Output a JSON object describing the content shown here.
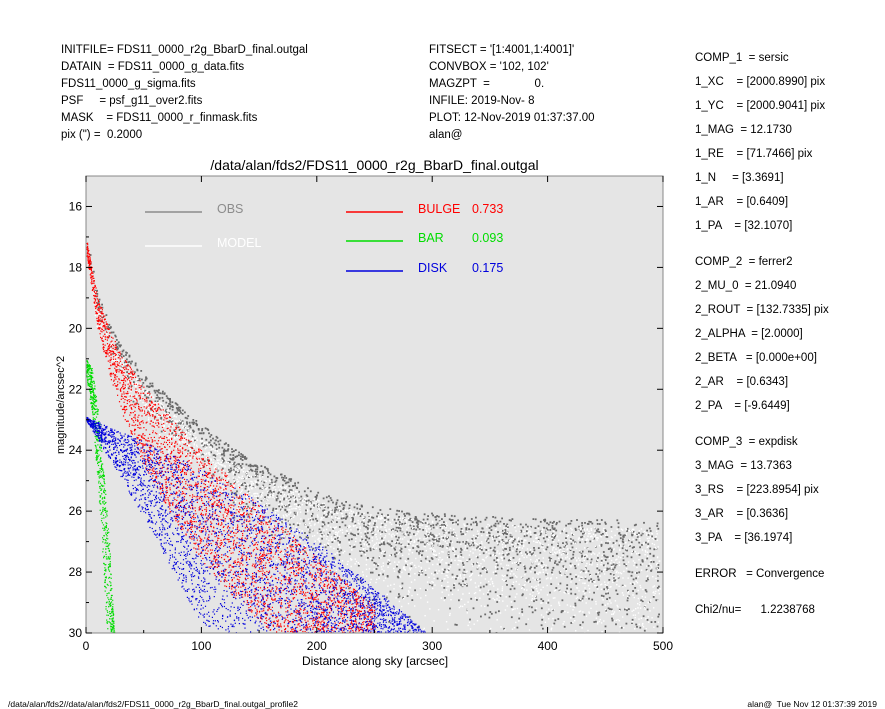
{
  "header_left": [
    "INITFILE= FDS11_0000_r2g_BbarD_final.outgal",
    "DATAIN  = FDS11_0000_g_data.fits",
    "FDS11_0000_g_sigma.fits",
    "PSF     = psf_g11_over2.fits",
    "MASK    = FDS11_0000_r_finmask.fits",
    "pix (\") =  0.2000"
  ],
  "header_mid": [
    "FITSECT = '[1:4001,1:4001]'",
    "CONVBOX = '102, 102'",
    "MAGZPT  =              0.",
    "INFILE: 2019-Nov- 8",
    "PLOT: 12-Nov-2019 01:37:37.00",
    "alan@"
  ],
  "right_panel": [
    "COMP_1  = sersic",
    "1_XC    = [2000.8990] pix",
    "1_YC    = [2000.9041] pix",
    "1_MAG  = 12.1730",
    "1_RE    = [71.7466] pix",
    "1_N     = [3.3691]",
    "1_AR    = [0.6409]",
    "1_PA    = [32.1070]",
    "COMP_2  = ferrer2",
    "2_MU_0  = 21.0940",
    "2_ROUT  = [132.7335] pix",
    "2_ALPHA  = [2.0000]",
    "2_BETA   = [0.000e+00]",
    "2_AR    = [0.6343]",
    "2_PA    = [-9.6449]",
    "COMP_3  = expdisk",
    "3_MAG  = 13.7363",
    "3_RS    = [223.8954] pix",
    "3_AR    = [0.3636]",
    "3_PA    = [36.1974]",
    "ERROR   = Convergence",
    "Chi2/nu=      1.2238768"
  ],
  "footer_left": "/data/alan/fds2//data/alan/fds2/FDS11_0000_r2g_BbarD_final.outgal_profile2",
  "footer_right": "alan@  Tue Nov 12 01:37:39 2019",
  "chart_data": {
    "type": "scatter",
    "title": "/data/alan/fds2/FDS11_0000_r2g_BbarD_final.outgal",
    "xlabel": "Distance along sky [arcsec]",
    "ylabel": "magnitude/arcsec^2",
    "xlim": [
      0,
      500
    ],
    "ylim": [
      30,
      15
    ],
    "y_inverted": true,
    "x_ticks": [
      "0",
      "100",
      "200",
      "300",
      "400",
      "500"
    ],
    "y_ticks": [
      "16",
      "18",
      "20",
      "22",
      "24",
      "26",
      "28",
      "30"
    ],
    "plot_background": "#e5e5e5",
    "legend": [
      {
        "label": "OBS",
        "color": "#8c8c8c"
      },
      {
        "label": "MODEL",
        "color": "#ffffff"
      },
      {
        "label": "BULGE",
        "value": "0.733",
        "color": "#ff0000"
      },
      {
        "label": "BAR",
        "value": "0.093",
        "color": "#00dd00"
      },
      {
        "label": "DISK",
        "value": "0.175",
        "color": "#0000dd"
      }
    ],
    "series": [
      {
        "name": "OBS",
        "color": "#6a6a6a",
        "envelope_x": [
          0,
          10,
          20,
          30,
          50,
          75,
          100,
          125,
          150,
          175,
          200,
          225,
          250,
          300,
          350,
          400,
          450,
          500
        ],
        "envelope_y": [
          17.0,
          19.0,
          20.0,
          20.7,
          21.6,
          22.5,
          23.3,
          24.0,
          24.6,
          25.0,
          25.5,
          25.8,
          26.0,
          26.2,
          26.3,
          26.4,
          26.4,
          26.5
        ]
      },
      {
        "name": "MODEL",
        "color": "#ffffff",
        "envelope_x": [
          0,
          10,
          20,
          30,
          50,
          75,
          100,
          125,
          150,
          175,
          200,
          225,
          250,
          300,
          350,
          400,
          450,
          500
        ],
        "envelope_y": [
          17.2,
          19.2,
          20.2,
          20.9,
          21.9,
          22.8,
          23.6,
          24.3,
          24.8,
          25.2,
          25.6,
          25.9,
          26.1,
          26.3,
          26.4,
          26.5,
          26.5,
          26.6
        ]
      },
      {
        "name": "BULGE",
        "color": "#ff0000",
        "upper_x": [
          0,
          10,
          20,
          30,
          50,
          75,
          100,
          125,
          150,
          200,
          250
        ],
        "upper_y": [
          17.0,
          19.0,
          20.0,
          20.8,
          21.9,
          23.0,
          24.0,
          24.9,
          25.8,
          27.5,
          29.1
        ],
        "lower_x": [
          0,
          10,
          20,
          30,
          50,
          75,
          100,
          125,
          150,
          160
        ],
        "lower_y": [
          17.5,
          20.0,
          21.5,
          22.7,
          24.5,
          26.2,
          27.6,
          28.7,
          29.6,
          30.0
        ]
      },
      {
        "name": "BAR",
        "color": "#00dd00",
        "upper_x": [
          0,
          5,
          10,
          15,
          20,
          22,
          24,
          25
        ],
        "upper_y": [
          21.0,
          21.3,
          22.5,
          24.5,
          27.0,
          28.5,
          29.8,
          30.0
        ],
        "lower_x": [
          0,
          5,
          10,
          15,
          17,
          18
        ],
        "lower_y": [
          21.5,
          22.8,
          25.0,
          28.0,
          29.5,
          30.0
        ]
      },
      {
        "name": "DISK",
        "color": "#0000dd",
        "upper_x": [
          0,
          50,
          100,
          150,
          200,
          250,
          295
        ],
        "upper_y": [
          22.9,
          23.7,
          24.6,
          25.7,
          27.0,
          28.5,
          30.0
        ],
        "lower_x": [
          0,
          30,
          60,
          90,
          105
        ],
        "lower_y": [
          23.0,
          24.9,
          26.9,
          29.0,
          30.0
        ]
      }
    ]
  }
}
